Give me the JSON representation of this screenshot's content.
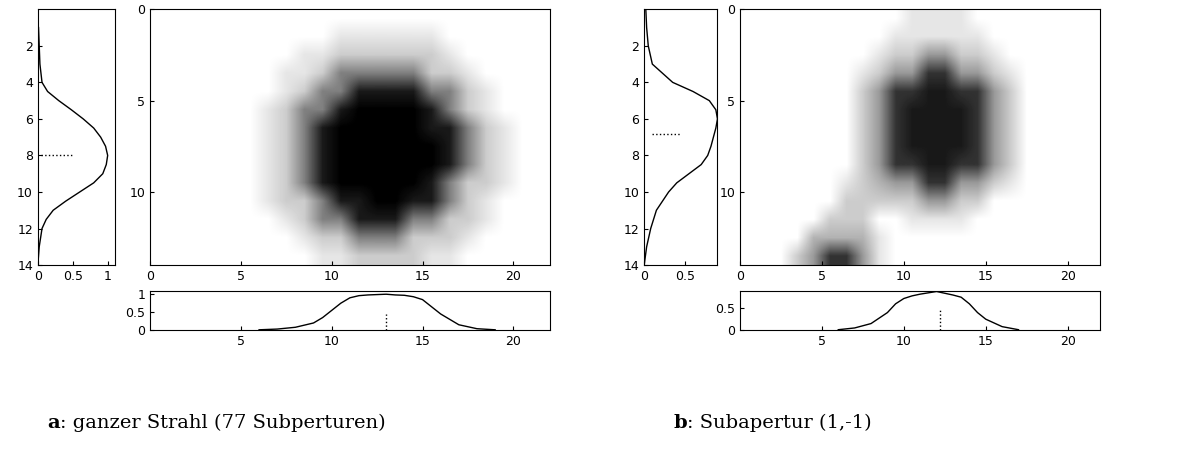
{
  "chart_data": [
    {
      "type": "heatmap",
      "caption_label": "a",
      "caption": ": ganzer Strahl (77 Subperturen)",
      "xlim": [
        0,
        22
      ],
      "ylim": [
        14,
        0
      ],
      "xticks": [
        0,
        5,
        10,
        15,
        20
      ],
      "yticks": [
        0,
        5,
        10
      ],
      "color_range": [
        0,
        1
      ],
      "cells": [
        [
          0,
          0,
          0,
          0,
          0,
          0,
          0,
          0,
          0,
          0,
          0,
          0,
          0,
          0,
          0,
          0,
          0,
          0,
          0,
          0,
          0,
          0
        ],
        [
          0,
          0,
          0,
          0,
          0,
          0,
          0,
          0,
          0,
          0,
          0.1,
          0.1,
          0.1,
          0.1,
          0.1,
          0.1,
          0,
          0,
          0,
          0,
          0,
          0
        ],
        [
          0,
          0,
          0,
          0,
          0,
          0,
          0,
          0,
          0.1,
          0.1,
          0.2,
          0.2,
          0.2,
          0.2,
          0.2,
          0.2,
          0.1,
          0,
          0,
          0,
          0,
          0
        ],
        [
          0,
          0,
          0,
          0,
          0,
          0,
          0,
          0.1,
          0.1,
          0.2,
          0.5,
          0.5,
          0.5,
          0.5,
          0.5,
          0.2,
          0.2,
          0.1,
          0,
          0,
          0,
          0
        ],
        [
          0,
          0,
          0,
          0,
          0,
          0,
          0,
          0.1,
          0.2,
          0.5,
          0.5,
          0.9,
          0.9,
          0.9,
          0.9,
          0.5,
          0.5,
          0.2,
          0.1,
          0,
          0,
          0
        ],
        [
          0,
          0,
          0,
          0,
          0,
          0,
          0.1,
          0.2,
          0.5,
          0.5,
          0.9,
          1,
          1,
          1,
          1,
          0.9,
          0.5,
          0.2,
          0.1,
          0,
          0,
          0
        ],
        [
          0,
          0,
          0,
          0,
          0,
          0,
          0.1,
          0.2,
          0.5,
          0.9,
          1,
          1,
          1,
          1,
          1,
          0.9,
          0.9,
          0.5,
          0.2,
          0.1,
          0,
          0
        ],
        [
          0,
          0,
          0,
          0,
          0,
          0,
          0.1,
          0.2,
          0.5,
          0.9,
          1,
          1,
          1,
          1,
          1,
          1,
          0.9,
          0.5,
          0.2,
          0.1,
          0,
          0
        ],
        [
          0,
          0,
          0,
          0,
          0,
          0,
          0.1,
          0.2,
          0.5,
          0.9,
          1,
          1,
          1,
          1,
          1,
          1,
          0.9,
          0.5,
          0.2,
          0.1,
          0,
          0
        ],
        [
          0,
          0,
          0,
          0,
          0,
          0,
          0.1,
          0.2,
          0.5,
          0.9,
          1,
          1,
          1,
          1,
          1,
          0.9,
          0.5,
          0.2,
          0.2,
          0.1,
          0,
          0
        ],
        [
          0,
          0,
          0,
          0,
          0,
          0,
          0.1,
          0.2,
          0.2,
          0.5,
          0.9,
          0.9,
          1,
          1,
          0.9,
          0.9,
          0.5,
          0.2,
          0.1,
          0,
          0,
          0
        ],
        [
          0,
          0,
          0,
          0,
          0,
          0,
          0,
          0.1,
          0.2,
          0.5,
          0.5,
          0.9,
          0.9,
          0.9,
          0.5,
          0.5,
          0.2,
          0.2,
          0.1,
          0,
          0,
          0
        ],
        [
          0,
          0,
          0,
          0,
          0,
          0,
          0,
          0,
          0.1,
          0.2,
          0.2,
          0.5,
          0.5,
          0.5,
          0.2,
          0.2,
          0.2,
          0.1,
          0,
          0,
          0,
          0
        ],
        [
          0,
          0,
          0,
          0,
          0,
          0,
          0,
          0,
          0,
          0.1,
          0.1,
          0.2,
          0.2,
          0.2,
          0.2,
          0.1,
          0.1,
          0,
          0,
          0,
          0,
          0
        ]
      ],
      "row_profile": {
        "type": "line",
        "positions": [
          1,
          2,
          3,
          4,
          4.5,
          5,
          5.5,
          6,
          6.5,
          7,
          7.5,
          8,
          8.5,
          9,
          9.5,
          10,
          10.5,
          11,
          11.5,
          12,
          13,
          14
        ],
        "values": [
          0.01,
          0.02,
          0.03,
          0.06,
          0.14,
          0.3,
          0.48,
          0.65,
          0.8,
          0.9,
          0.97,
          1.0,
          0.98,
          0.93,
          0.8,
          0.6,
          0.4,
          0.22,
          0.12,
          0.06,
          0.02,
          0.0
        ],
        "xlim": [
          0,
          1.1
        ],
        "xticks": [
          0,
          0.5,
          1
        ],
        "ylim": [
          14,
          0
        ],
        "yticks": [
          2,
          4,
          6,
          8,
          10,
          12,
          14
        ],
        "center": 8,
        "center_span": [
          0.05,
          0.5
        ]
      },
      "column_profile": {
        "type": "line",
        "positions": [
          6,
          7,
          8,
          9,
          9.5,
          10,
          10.5,
          11,
          11.5,
          12,
          12.5,
          13,
          13.5,
          14,
          14.5,
          15,
          15.5,
          16,
          17,
          18,
          19
        ],
        "values": [
          0.01,
          0.03,
          0.08,
          0.2,
          0.35,
          0.55,
          0.75,
          0.9,
          0.96,
          0.98,
          0.99,
          1.0,
          0.98,
          0.97,
          0.93,
          0.85,
          0.65,
          0.45,
          0.15,
          0.04,
          0.01
        ],
        "xlim": [
          0,
          22
        ],
        "xticks": [
          5,
          10,
          15,
          20
        ],
        "ylim": [
          0,
          1.1
        ],
        "yticks": [
          0,
          0.5,
          1
        ],
        "center": 13,
        "center_span": [
          0,
          0.45
        ]
      }
    },
    {
      "type": "heatmap",
      "caption_label": "b",
      "caption": ": Subapertur (1,-1)",
      "xlim": [
        0,
        22
      ],
      "ylim": [
        14,
        0
      ],
      "xticks": [
        0,
        5,
        10,
        15,
        20
      ],
      "yticks": [
        0,
        5,
        10
      ],
      "color_range": [
        0,
        1
      ],
      "cells": [
        [
          0,
          0,
          0,
          0,
          0,
          0,
          0,
          0,
          0,
          0,
          0.1,
          0.1,
          0.1,
          0.1,
          0,
          0,
          0,
          0,
          0,
          0,
          0,
          0
        ],
        [
          0,
          0,
          0,
          0,
          0,
          0,
          0,
          0,
          0,
          0.1,
          0.1,
          0.1,
          0.1,
          0.1,
          0.1,
          0,
          0,
          0,
          0,
          0,
          0,
          0
        ],
        [
          0,
          0,
          0,
          0,
          0,
          0,
          0,
          0,
          0.1,
          0.2,
          0.2,
          0.4,
          0.4,
          0.2,
          0.2,
          0.1,
          0,
          0,
          0,
          0,
          0,
          0
        ],
        [
          0,
          0,
          0,
          0,
          0,
          0,
          0,
          0.1,
          0.2,
          0.4,
          0.4,
          0.8,
          0.8,
          0.4,
          0.4,
          0.2,
          0.1,
          0,
          0,
          0,
          0,
          0
        ],
        [
          0,
          0,
          0,
          0,
          0,
          0,
          0,
          0.2,
          0.4,
          0.8,
          0.8,
          0.9,
          0.9,
          0.8,
          0.8,
          0.4,
          0.2,
          0,
          0,
          0,
          0,
          0
        ],
        [
          0,
          0,
          0,
          0,
          0,
          0,
          0,
          0.2,
          0.4,
          0.8,
          0.9,
          0.9,
          0.9,
          0.9,
          0.8,
          0.4,
          0.2,
          0,
          0,
          0,
          0,
          0
        ],
        [
          0,
          0,
          0,
          0,
          0,
          0,
          0,
          0.2,
          0.4,
          0.8,
          0.9,
          0.9,
          0.9,
          0.9,
          0.8,
          0.4,
          0.2,
          0,
          0,
          0,
          0,
          0
        ],
        [
          0,
          0,
          0,
          0,
          0,
          0,
          0,
          0.2,
          0.4,
          0.8,
          0.9,
          0.9,
          0.9,
          0.9,
          0.8,
          0.4,
          0.2,
          0,
          0,
          0,
          0,
          0
        ],
        [
          0,
          0,
          0,
          0,
          0,
          0,
          0,
          0.2,
          0.4,
          0.8,
          0.8,
          0.9,
          0.9,
          0.8,
          0.8,
          0.4,
          0.2,
          0,
          0,
          0,
          0,
          0
        ],
        [
          0,
          0,
          0,
          0,
          0,
          0,
          0.1,
          0.2,
          0.3,
          0.4,
          0.4,
          0.8,
          0.8,
          0.4,
          0.4,
          0.2,
          0.1,
          0,
          0,
          0,
          0,
          0
        ],
        [
          0,
          0,
          0,
          0,
          0,
          0,
          0.2,
          0.2,
          0.2,
          0.2,
          0.2,
          0.4,
          0.4,
          0.2,
          0.2,
          0,
          0,
          0,
          0,
          0,
          0,
          0
        ],
        [
          0,
          0,
          0,
          0,
          0,
          0.2,
          0.2,
          0.2,
          0,
          0,
          0.1,
          0.1,
          0.1,
          0.1,
          0,
          0,
          0,
          0,
          0,
          0,
          0,
          0
        ],
        [
          0,
          0,
          0,
          0,
          0.3,
          0.3,
          0.3,
          0.3,
          0.1,
          0,
          0,
          0,
          0,
          0,
          0,
          0,
          0,
          0,
          0,
          0,
          0,
          0
        ],
        [
          0,
          0,
          0,
          0.2,
          0.4,
          0.8,
          0.8,
          0.4,
          0.1,
          0,
          0,
          0,
          0,
          0,
          0,
          0,
          0,
          0,
          0,
          0,
          0,
          0
        ]
      ],
      "row_profile": {
        "type": "line",
        "positions": [
          0,
          1,
          2,
          3,
          4,
          4.5,
          5,
          5.5,
          6,
          6.5,
          7,
          7.5,
          8,
          8.5,
          9,
          9.5,
          10,
          11,
          12,
          13,
          14
        ],
        "values": [
          0.02,
          0.03,
          0.05,
          0.1,
          0.35,
          0.6,
          0.8,
          0.88,
          0.9,
          0.88,
          0.85,
          0.82,
          0.78,
          0.7,
          0.55,
          0.4,
          0.3,
          0.15,
          0.08,
          0.03,
          0.0
        ],
        "xlim": [
          0,
          0.9
        ],
        "xticks": [
          0,
          0.5
        ],
        "ylim": [
          14,
          0
        ],
        "yticks": [
          2,
          4,
          6,
          8,
          10,
          12,
          14
        ],
        "center": 6.8,
        "center_span": [
          0.1,
          0.45
        ]
      },
      "column_profile": {
        "type": "line",
        "positions": [
          6,
          7,
          8,
          9,
          9.5,
          10,
          10.5,
          11,
          11.5,
          12,
          12.5,
          13,
          13.5,
          14,
          14.5,
          15,
          16,
          17
        ],
        "values": [
          0.01,
          0.05,
          0.15,
          0.4,
          0.6,
          0.72,
          0.78,
          0.82,
          0.85,
          0.88,
          0.84,
          0.8,
          0.75,
          0.6,
          0.4,
          0.25,
          0.08,
          0.01
        ],
        "xlim": [
          0,
          22
        ],
        "xticks": [
          5,
          10,
          15,
          20
        ],
        "ylim": [
          0,
          0.9
        ],
        "yticks": [
          0,
          0.5
        ],
        "center": 12.2,
        "center_span": [
          0,
          0.45
        ]
      }
    }
  ]
}
